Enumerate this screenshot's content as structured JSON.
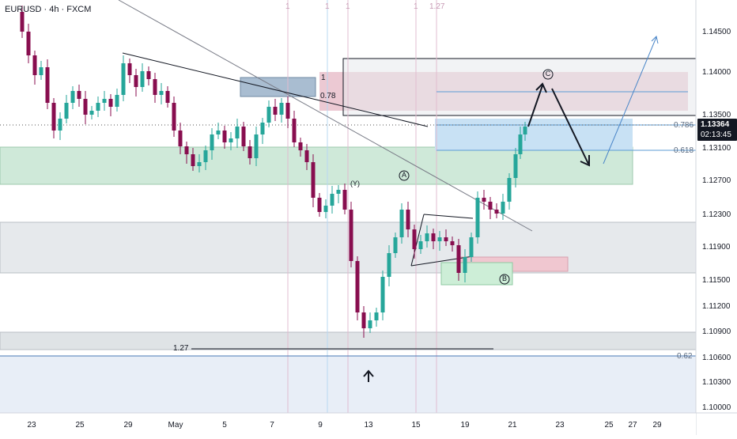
{
  "header": {
    "symbol_title": "EURUSD · 4h · FXCM"
  },
  "price_axis": {
    "ticks": [
      "1.14500",
      "1.14000",
      "1.13500",
      "1.13100",
      "1.12700",
      "1.12300",
      "1.11900",
      "1.11500",
      "1.11200",
      "1.10900",
      "1.10600",
      "1.10300",
      "1.10000"
    ],
    "current_price": "1.13364",
    "countdown": "02:13:45",
    "fib_786": "0.786",
    "fib_618": "0.618",
    "fib_062": "0.62"
  },
  "time_axis": {
    "ticks": [
      "23",
      "25",
      "29",
      "May",
      "5",
      "7",
      "9",
      "13",
      "15",
      "19",
      "21",
      "23",
      "25",
      "27",
      "29"
    ]
  },
  "annotations": {
    "vline_labels": [
      "1",
      "1",
      "1",
      "1",
      "1.27"
    ],
    "box_top_label": "1",
    "fib_078": "0.78",
    "fib_127": "1.27",
    "wave_y": "(Y)",
    "wave_a": "A",
    "wave_b": "B",
    "wave_c": "C"
  },
  "colors": {
    "bull": "#26a69a",
    "bear": "#880e4f",
    "green_zone": "#c8e6d2",
    "pink_zone": "#e8c4cf",
    "blue_zone": "#c5dff3",
    "grey_zone": "#e0e3e6",
    "vline_pink": "#e1bcd0",
    "vline_blue": "#b9d8f2"
  }
}
